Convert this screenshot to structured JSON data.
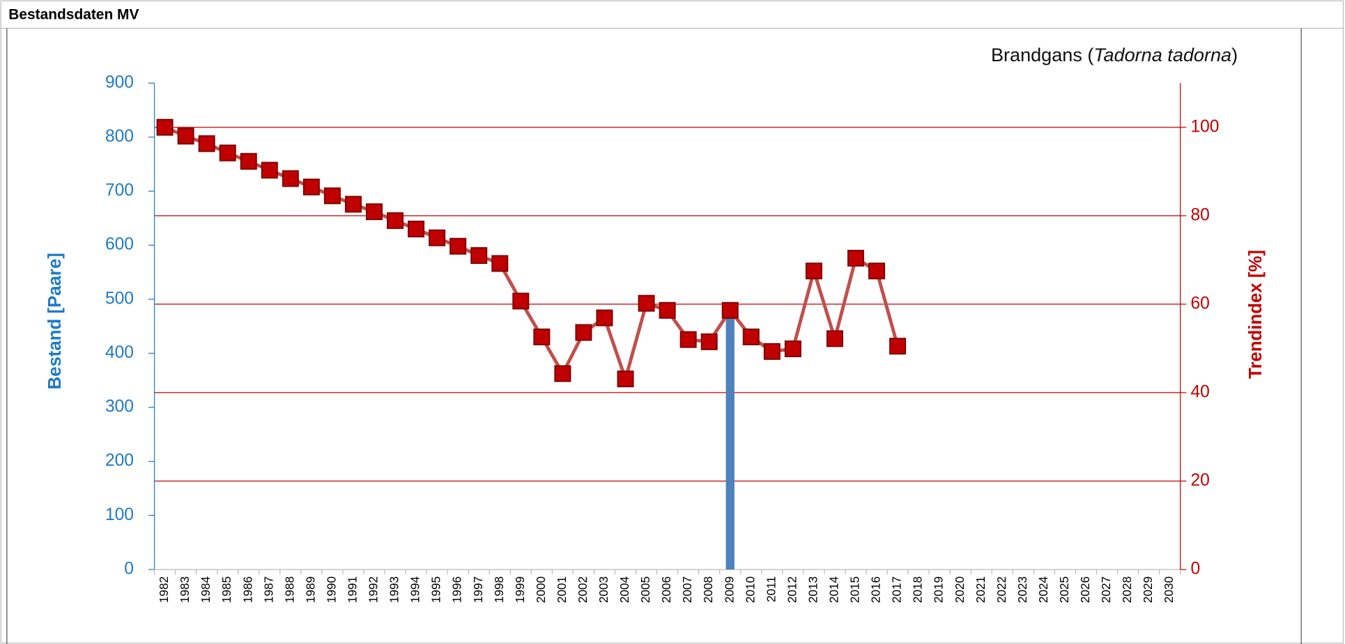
{
  "header": {
    "title": "Bestandsdaten MV"
  },
  "chart_data": {
    "type": "bar_line",
    "title_parts": [
      "Brandgans (",
      "Tadorna tadorna",
      ")"
    ],
    "ylabel": "Bestand [Paare]",
    "y2label": "Trendindex [%]",
    "categories": [
      "1982",
      "1983",
      "1984",
      "1985",
      "1986",
      "1987",
      "1988",
      "1989",
      "1990",
      "1991",
      "1992",
      "1993",
      "1994",
      "1995",
      "1996",
      "1997",
      "1998",
      "1999",
      "2000",
      "2001",
      "2002",
      "2003",
      "2004",
      "2005",
      "2006",
      "2007",
      "2008",
      "2009",
      "2010",
      "2011",
      "2012",
      "2013",
      "2014",
      "2015",
      "2016",
      "2017",
      "2018",
      "2019",
      "2020",
      "2021",
      "2022",
      "2023",
      "2024",
      "2025",
      "2026",
      "2027",
      "2028",
      "2029",
      "2030"
    ],
    "series": [
      {
        "type": "bar",
        "color": "#4f81bd",
        "values": [
          null,
          null,
          null,
          null,
          null,
          null,
          null,
          null,
          null,
          null,
          null,
          null,
          null,
          null,
          null,
          null,
          null,
          null,
          null,
          null,
          null,
          null,
          null,
          null,
          null,
          null,
          null,
          480,
          null,
          null,
          null,
          null,
          null,
          null,
          null,
          null,
          null,
          null,
          null,
          null,
          null,
          null,
          null,
          null,
          null,
          null,
          null,
          null,
          null
        ]
      },
      {
        "type": "line",
        "axis": "y2",
        "color": "#c0504d",
        "marker_color": "#c00000",
        "values": [
          100,
          98,
          96.3,
          94.2,
          92.3,
          90.3,
          88.4,
          86.5,
          84.5,
          82.6,
          80.9,
          78.9,
          77,
          75,
          73.1,
          71,
          69.2,
          60.7,
          52.6,
          44.3,
          53.6,
          56.9,
          43.1,
          60.2,
          58.6,
          52,
          51.5,
          58.6,
          52.6,
          49.3,
          49.9,
          67.5,
          52.2,
          70.4,
          67.5,
          50.5,
          null,
          null,
          null,
          null,
          null,
          null,
          null,
          null,
          null,
          null,
          null,
          null,
          null
        ]
      }
    ],
    "ylim": [
      0,
      900
    ],
    "yticks": [
      0,
      100,
      200,
      300,
      400,
      500,
      600,
      700,
      800,
      900
    ],
    "y2lim": [
      0,
      110
    ],
    "y2ticks": [
      0,
      20,
      40,
      60,
      80,
      100
    ],
    "grid": "y2",
    "ycolor": "#1f7ac4",
    "y2color": "#c00000"
  }
}
